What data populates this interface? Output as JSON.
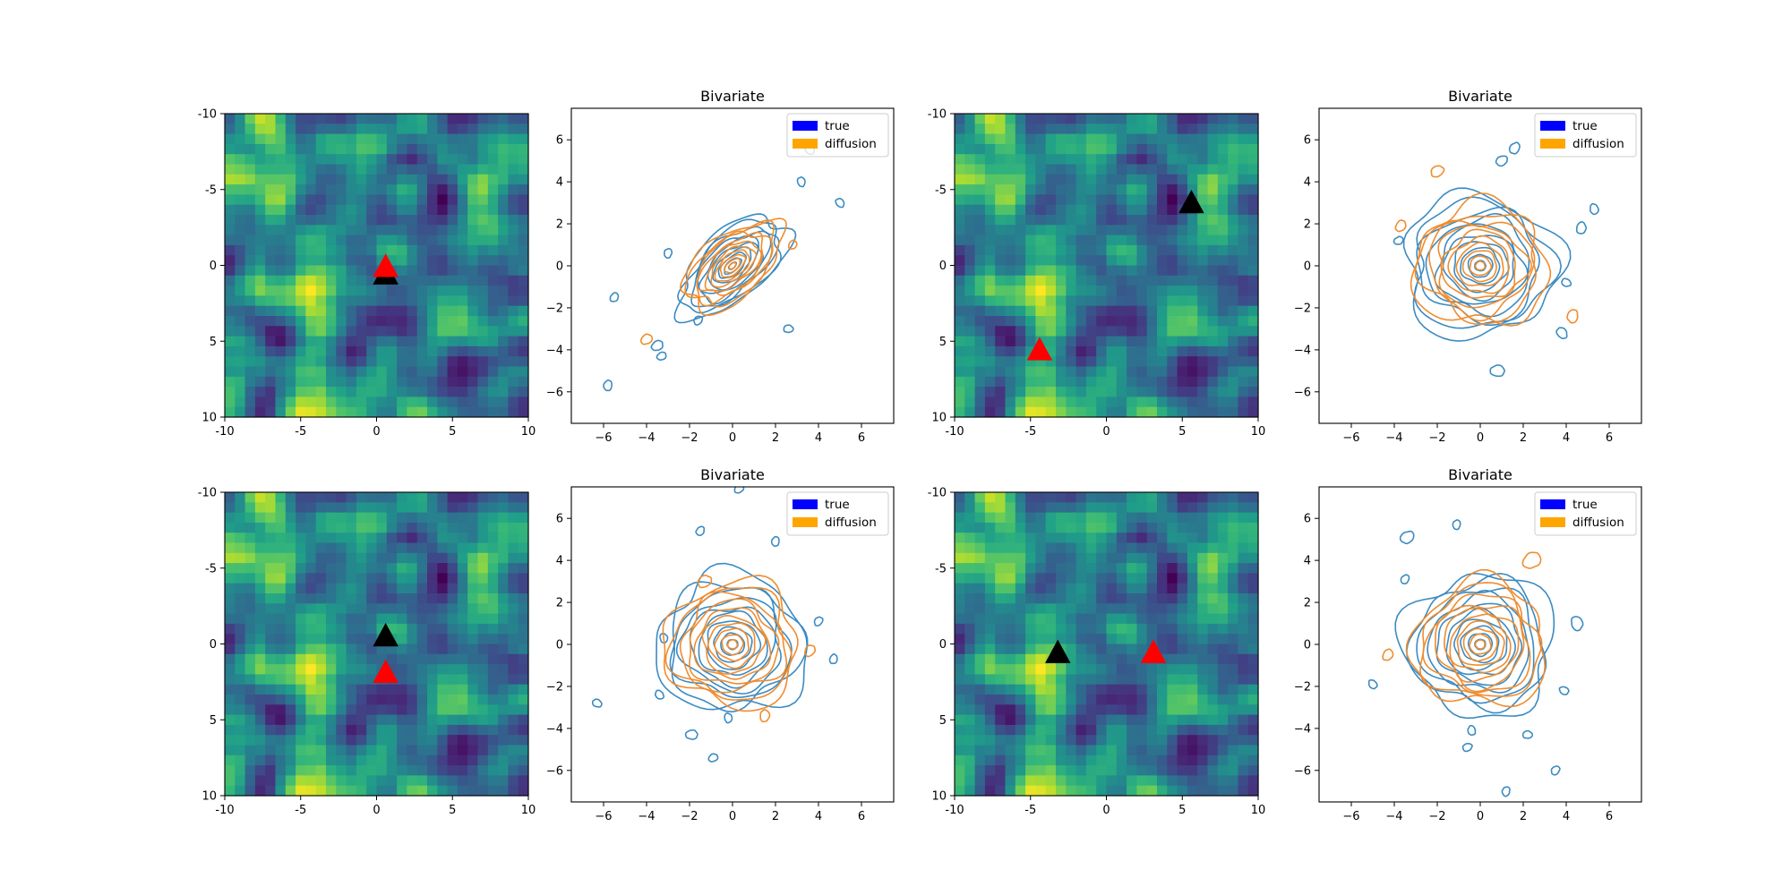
{
  "colors": {
    "true": "#0000ff",
    "diffusion": "#ffa500",
    "contour_true": "#3b8bc2",
    "contour_diffusion": "#f08c2e",
    "marker_true": "#000000",
    "marker_diffusion": "#ff0000"
  },
  "chart_data": [
    {
      "panel": "field-0",
      "type": "heatmap",
      "title": "",
      "colormap": "viridis",
      "seed": 7,
      "xlim": [
        -10,
        10
      ],
      "ylim": [
        10,
        -10
      ],
      "xticks": [
        -10,
        -5,
        0,
        5,
        10
      ],
      "xtick_labels": [
        "-10",
        "-5",
        "0",
        "5",
        "10"
      ],
      "yticks": [
        -10,
        -5,
        0,
        5,
        10
      ],
      "ytick_labels": [
        "-10",
        "-5",
        "0",
        "5",
        "10"
      ],
      "markers": [
        {
          "name": "true",
          "x": 0.6,
          "y": 0.6
        },
        {
          "name": "diffusion",
          "x": 0.6,
          "y": 0.1
        }
      ]
    },
    {
      "panel": "bivariate-0",
      "type": "contour",
      "title": "Bivariate",
      "xlim": [
        -7.5,
        7.5
      ],
      "ylim": [
        -7.5,
        7.5
      ],
      "xticks": [
        -6,
        -4,
        -2,
        0,
        2,
        4,
        6
      ],
      "xtick_labels": [
        "−6",
        "−4",
        "−2",
        "0",
        "2",
        "4",
        "6"
      ],
      "yticks": [
        -6,
        -4,
        -2,
        0,
        2,
        4,
        6
      ],
      "ytick_labels": [
        "−6",
        "−4",
        "−2",
        "0",
        "2",
        "4",
        "6"
      ],
      "legend": [
        "true",
        "diffusion"
      ],
      "legend_loc": "upper right",
      "series": [
        {
          "name": "true",
          "center": [
            0,
            0
          ],
          "rx": 3.1,
          "ry": 1.6,
          "angle": 42,
          "levels": 10,
          "blobs": [
            [
              -3.5,
              -3.8,
              0.25
            ],
            [
              -5.5,
              -1.5,
              0.2
            ],
            [
              -5.8,
              -5.7,
              0.22
            ],
            [
              3.2,
              4.0,
              0.2
            ],
            [
              5.0,
              3.0,
              0.2
            ],
            [
              3.6,
              5.5,
              0.2
            ],
            [
              2.6,
              -3.0,
              0.2
            ],
            [
              -3.3,
              -4.3,
              0.2
            ],
            [
              -1.6,
              -2.6,
              0.2
            ],
            [
              -3.0,
              0.6,
              0.2
            ]
          ]
        },
        {
          "name": "diffusion",
          "center": [
            0,
            0
          ],
          "rx": 2.7,
          "ry": 1.5,
          "angle": 40,
          "levels": 10,
          "blobs": [
            [
              -4.0,
              -3.5,
              0.25
            ],
            [
              2.8,
              1.0,
              0.2
            ]
          ]
        }
      ]
    },
    {
      "panel": "field-1",
      "type": "heatmap",
      "title": "",
      "colormap": "viridis",
      "seed": 7,
      "xlim": [
        -10,
        10
      ],
      "ylim": [
        10,
        -10
      ],
      "xticks": [
        -10,
        -5,
        0,
        5,
        10
      ],
      "xtick_labels": [
        "-10",
        "-5",
        "0",
        "5",
        "10"
      ],
      "yticks": [
        -10,
        -5,
        0,
        5,
        10
      ],
      "ytick_labels": [
        "-10",
        "-5",
        "0",
        "5",
        "10"
      ],
      "markers": [
        {
          "name": "true",
          "x": 5.6,
          "y": -4.1
        },
        {
          "name": "diffusion",
          "x": -4.4,
          "y": 5.6
        }
      ]
    },
    {
      "panel": "bivariate-1",
      "type": "contour",
      "title": "Bivariate",
      "xlim": [
        -7.5,
        7.5
      ],
      "ylim": [
        -7.5,
        7.5
      ],
      "xticks": [
        -6,
        -4,
        -2,
        0,
        2,
        4,
        6
      ],
      "xtick_labels": [
        "−6",
        "−4",
        "−2",
        "0",
        "2",
        "4",
        "6"
      ],
      "yticks": [
        -6,
        -4,
        -2,
        0,
        2,
        4,
        6
      ],
      "ytick_labels": [
        "−6",
        "−4",
        "−2",
        "0",
        "2",
        "4",
        "6"
      ],
      "legend": [
        "true",
        "diffusion"
      ],
      "legend_loc": "upper right",
      "series": [
        {
          "name": "true",
          "center": [
            0,
            0
          ],
          "rx": 3.6,
          "ry": 3.4,
          "angle": 0,
          "levels": 10,
          "blobs": [
            [
              1.0,
              5.0,
              0.25
            ],
            [
              1.6,
              5.6,
              0.25
            ],
            [
              4.7,
              1.8,
              0.25
            ],
            [
              5.3,
              2.7,
              0.22
            ],
            [
              3.8,
              -3.2,
              0.25
            ],
            [
              4.0,
              -0.8,
              0.2
            ],
            [
              0.8,
              -5.0,
              0.3
            ],
            [
              -3.8,
              1.2,
              0.2
            ]
          ]
        },
        {
          "name": "diffusion",
          "center": [
            0,
            0
          ],
          "rx": 3.1,
          "ry": 2.9,
          "angle": 0,
          "levels": 10,
          "blobs": [
            [
              -2.0,
              4.5,
              0.28
            ],
            [
              -3.7,
              1.9,
              0.25
            ],
            [
              4.3,
              -2.4,
              0.28
            ]
          ]
        }
      ]
    },
    {
      "panel": "field-2",
      "type": "heatmap",
      "title": "",
      "colormap": "viridis",
      "seed": 7,
      "xlim": [
        -10,
        10
      ],
      "ylim": [
        10,
        -10
      ],
      "xticks": [
        -10,
        -5,
        0,
        5,
        10
      ],
      "xtick_labels": [
        "-10",
        "-5",
        "0",
        "5",
        "10"
      ],
      "yticks": [
        -10,
        -5,
        0,
        5,
        10
      ],
      "ytick_labels": [
        "-10",
        "-5",
        "0",
        "5",
        "10"
      ],
      "markers": [
        {
          "name": "true",
          "x": 0.6,
          "y": -0.5
        },
        {
          "name": "diffusion",
          "x": 0.6,
          "y": 1.9
        }
      ]
    },
    {
      "panel": "bivariate-2",
      "type": "contour",
      "title": "Bivariate",
      "xlim": [
        -7.5,
        7.5
      ],
      "ylim": [
        -7.5,
        7.5
      ],
      "xticks": [
        -6,
        -4,
        -2,
        0,
        2,
        4,
        6
      ],
      "xtick_labels": [
        "−6",
        "−4",
        "−2",
        "0",
        "2",
        "4",
        "6"
      ],
      "yticks": [
        -6,
        -4,
        -2,
        0,
        2,
        4,
        6
      ],
      "ytick_labels": [
        "−6",
        "−4",
        "−2",
        "0",
        "2",
        "4",
        "6"
      ],
      "legend": [
        "true",
        "diffusion"
      ],
      "legend_loc": "upper right",
      "series": [
        {
          "name": "true",
          "center": [
            0,
            0
          ],
          "rx": 3.5,
          "ry": 3.3,
          "angle": 0,
          "levels": 10,
          "blobs": [
            [
              0.3,
              7.4,
              0.2
            ],
            [
              -1.5,
              5.4,
              0.2
            ],
            [
              2.0,
              4.9,
              0.2
            ],
            [
              -3.2,
              0.3,
              0.2
            ],
            [
              -3.4,
              -2.4,
              0.2
            ],
            [
              -6.3,
              -2.8,
              0.2
            ],
            [
              -1.9,
              -4.3,
              0.25
            ],
            [
              -0.9,
              -5.4,
              0.2
            ],
            [
              4.0,
              1.1,
              0.2
            ],
            [
              4.7,
              -0.7,
              0.2
            ],
            [
              -0.2,
              -3.5,
              0.2
            ]
          ]
        },
        {
          "name": "diffusion",
          "center": [
            0,
            0
          ],
          "rx": 3.1,
          "ry": 3.0,
          "angle": 0,
          "levels": 10,
          "blobs": [
            [
              -1.3,
              3.0,
              0.3
            ],
            [
              3.6,
              -0.3,
              0.25
            ],
            [
              1.5,
              -3.4,
              0.25
            ]
          ]
        }
      ]
    },
    {
      "panel": "field-3",
      "type": "heatmap",
      "title": "",
      "colormap": "viridis",
      "seed": 7,
      "xlim": [
        -10,
        10
      ],
      "ylim": [
        10,
        -10
      ],
      "xticks": [
        -10,
        -5,
        0,
        5,
        10
      ],
      "xtick_labels": [
        "-10",
        "-5",
        "0",
        "5",
        "10"
      ],
      "yticks": [
        -10,
        -5,
        0,
        5,
        10
      ],
      "ytick_labels": [
        "-10",
        "-5",
        "0",
        "5",
        "10"
      ],
      "markers": [
        {
          "name": "true",
          "x": -3.2,
          "y": 0.6
        },
        {
          "name": "diffusion",
          "x": 3.1,
          "y": 0.6
        }
      ]
    },
    {
      "panel": "bivariate-3",
      "type": "contour",
      "title": "Bivariate",
      "xlim": [
        -7.5,
        7.5
      ],
      "ylim": [
        -7.5,
        7.5
      ],
      "xticks": [
        -6,
        -4,
        -2,
        0,
        2,
        4,
        6
      ],
      "xtick_labels": [
        "−6",
        "−4",
        "−2",
        "0",
        "2",
        "4",
        "6"
      ],
      "yticks": [
        -6,
        -4,
        -2,
        0,
        2,
        4,
        6
      ],
      "ytick_labels": [
        "−6",
        "−4",
        "−2",
        "0",
        "2",
        "4",
        "6"
      ],
      "legend": [
        "true",
        "diffusion"
      ],
      "legend_loc": "upper right",
      "series": [
        {
          "name": "true",
          "center": [
            0,
            0
          ],
          "rx": 3.5,
          "ry": 3.4,
          "angle": 0,
          "levels": 10,
          "blobs": [
            [
              -3.4,
              5.1,
              0.3
            ],
            [
              -3.5,
              3.1,
              0.2
            ],
            [
              -1.1,
              5.7,
              0.2
            ],
            [
              4.5,
              1.0,
              0.3
            ],
            [
              -5.0,
              -1.9,
              0.2
            ],
            [
              3.9,
              -2.2,
              0.2
            ],
            [
              2.2,
              -4.3,
              0.2
            ],
            [
              -0.6,
              -4.9,
              0.2
            ],
            [
              3.5,
              -6.0,
              0.2
            ],
            [
              1.2,
              -7.0,
              0.2
            ],
            [
              -0.4,
              -4.1,
              0.2
            ]
          ]
        },
        {
          "name": "diffusion",
          "center": [
            0,
            0
          ],
          "rx": 3.1,
          "ry": 3.0,
          "angle": 0,
          "levels": 10,
          "blobs": [
            [
              2.4,
              4.0,
              0.4
            ],
            [
              -4.3,
              -0.5,
              0.25
            ]
          ]
        }
      ]
    }
  ]
}
